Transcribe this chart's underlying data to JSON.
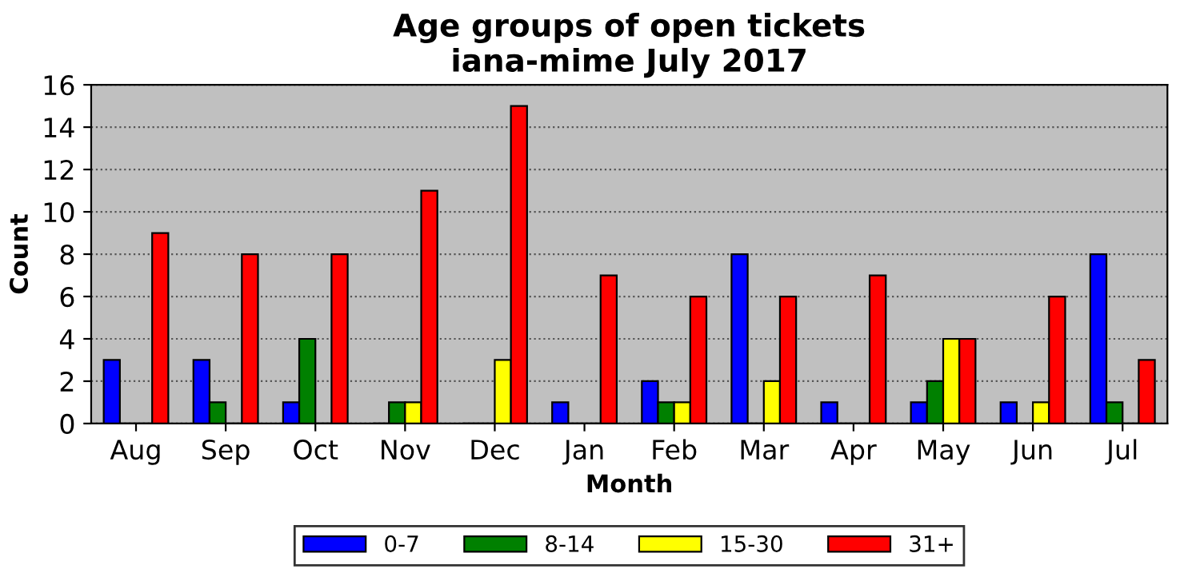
{
  "chart_data": {
    "type": "bar",
    "title": "Age groups of open tickets\niana-mime July 2017",
    "xlabel": "Month",
    "ylabel": "Count",
    "categories": [
      "Aug",
      "Sep",
      "Oct",
      "Nov",
      "Dec",
      "Jan",
      "Feb",
      "Mar",
      "Apr",
      "May",
      "Jun",
      "Jul"
    ],
    "series": [
      {
        "name": "0-7",
        "color": "#0000ff",
        "values": [
          3,
          3,
          1,
          0,
          0,
          1,
          2,
          8,
          1,
          1,
          1,
          8
        ]
      },
      {
        "name": "8-14",
        "color": "#008000",
        "values": [
          0,
          1,
          4,
          1,
          0,
          0,
          1,
          0,
          0,
          2,
          0,
          1
        ]
      },
      {
        "name": "15-30",
        "color": "#ffff00",
        "values": [
          0,
          0,
          0,
          1,
          3,
          0,
          1,
          2,
          0,
          4,
          1,
          0
        ]
      },
      {
        "name": "31+",
        "color": "#ff0000",
        "values": [
          9,
          8,
          8,
          11,
          15,
          7,
          6,
          6,
          7,
          4,
          6,
          3
        ]
      }
    ],
    "ylim": [
      0,
      16
    ],
    "yticks": [
      0,
      2,
      4,
      6,
      8,
      10,
      12,
      14,
      16
    ],
    "grid": "y",
    "legend": "bottom"
  }
}
